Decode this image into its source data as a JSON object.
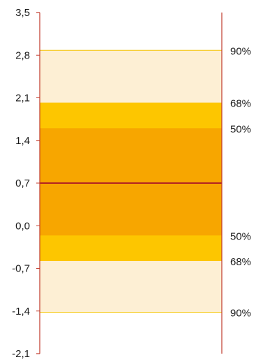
{
  "chart_data": {
    "type": "fan-band",
    "title": "",
    "xlabel": "",
    "ylabel": "",
    "ylim": [
      -2.1,
      3.5
    ],
    "y_ticks": [
      {
        "value": 3.5,
        "label": "3,5"
      },
      {
        "value": 2.8,
        "label": "2,8"
      },
      {
        "value": 2.1,
        "label": "2,1"
      },
      {
        "value": 1.4,
        "label": "1,4"
      },
      {
        "value": 0.7,
        "label": "0,7"
      },
      {
        "value": 0.0,
        "label": "0,0"
      },
      {
        "value": -0.7,
        "label": "-0,7"
      },
      {
        "value": -1.4,
        "label": "-1,4"
      },
      {
        "value": -2.1,
        "label": "-2,1"
      }
    ],
    "central_value": 0.7,
    "bands": [
      {
        "name": "90%",
        "lower": -1.42,
        "upper": 2.88,
        "color": "#fdefd4",
        "upper_label": "90%",
        "lower_label": "90%"
      },
      {
        "name": "68%",
        "lower": -0.58,
        "upper": 2.02,
        "color": "#fdc600",
        "upper_label": "68%",
        "lower_label": "68%"
      },
      {
        "name": "50%",
        "lower": -0.16,
        "upper": 1.6,
        "color": "#f7a600",
        "upper_label": "50%",
        "lower_label": "50%"
      }
    ],
    "colors": {
      "axis": "#c0392b",
      "central_line": "#b22222",
      "band_outline": "#f5c400"
    },
    "grid": false,
    "legend": "right-side labels"
  }
}
